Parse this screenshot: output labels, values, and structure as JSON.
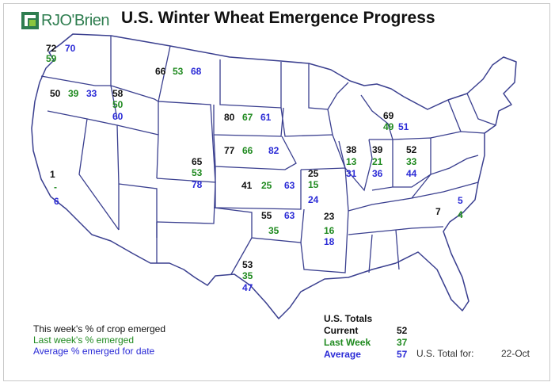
{
  "header": {
    "brand": "RJO'Brien",
    "title": "U.S. Winter Wheat Emergence Progress"
  },
  "colors": {
    "current": "#111111",
    "last_week": "#1f8a1f",
    "average": "#2b2bd6",
    "state_border": "#3a3f8f",
    "brand": "#2e7d4f"
  },
  "states": [
    {
      "id": "WA",
      "current": "72",
      "last": "59",
      "avg": "70"
    },
    {
      "id": "OR",
      "current": "50",
      "last": "39",
      "avg": "33"
    },
    {
      "id": "ID",
      "current": "58",
      "last": "50",
      "avg": "60"
    },
    {
      "id": "MT",
      "current": "66",
      "last": "53",
      "avg": "68"
    },
    {
      "id": "CA",
      "current": "1",
      "last": "-",
      "avg": "6"
    },
    {
      "id": "CO",
      "current": "65",
      "last": "53",
      "avg": "78"
    },
    {
      "id": "SD",
      "current": "80",
      "last": "67",
      "avg": "61"
    },
    {
      "id": "NE",
      "current": "77",
      "last": "66",
      "avg": "82"
    },
    {
      "id": "KS",
      "current": "41",
      "last": "25",
      "avg": "63"
    },
    {
      "id": "OK",
      "current": "55",
      "last": "35",
      "avg": "63"
    },
    {
      "id": "TX",
      "current": "53",
      "last": "35",
      "avg": "47"
    },
    {
      "id": "MO",
      "current": "25",
      "last": "15",
      "avg": "24"
    },
    {
      "id": "AR",
      "current": "23",
      "last": "16",
      "avg": "18"
    },
    {
      "id": "IL",
      "current": "38",
      "last": "13",
      "avg": "31"
    },
    {
      "id": "IN",
      "current": "39",
      "last": "21",
      "avg": "36"
    },
    {
      "id": "OH",
      "current": "52",
      "last": "33",
      "avg": "44"
    },
    {
      "id": "MI",
      "current": "69",
      "last": "49",
      "avg": "51"
    },
    {
      "id": "NC",
      "current": "7",
      "last": "4",
      "avg": "5"
    }
  ],
  "legend": {
    "current": "This week's % of crop emerged",
    "last": "Last week's % emerged",
    "avg": "Average % emerged for date"
  },
  "totals": {
    "heading": "U.S. Totals",
    "current_label": "Current",
    "current_value": "52",
    "last_label": "Last Week",
    "last_value": "37",
    "avg_label": "Average",
    "avg_value": "57",
    "for_label": "U.S. Total for:",
    "date": "22-Oct"
  }
}
